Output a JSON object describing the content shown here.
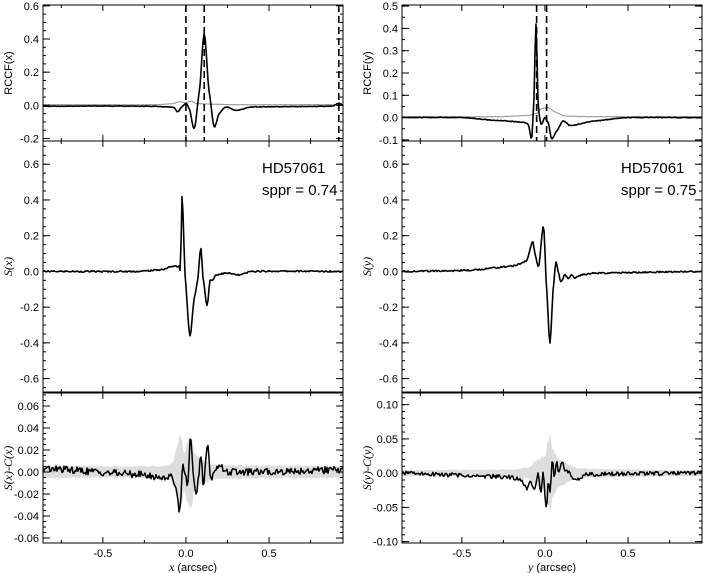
{
  "chart_data": [
    {
      "id": "rccf-x",
      "type": "line",
      "ylabel": "RCCF(x)",
      "ylabel_parts": [
        "RCCF(",
        "x",
        ")"
      ],
      "xlim": [
        -0.86,
        0.945
      ],
      "ylim": [
        -0.215,
        0.605
      ],
      "yticks": [
        {
          "v": 0.6,
          "label": "0.6"
        },
        {
          "v": 0.4,
          "label": "0.4"
        },
        {
          "v": 0.2,
          "label": "0.2"
        },
        {
          "v": 0.0,
          "label": "0.0"
        },
        {
          "v": -0.2,
          "label": "-0.2"
        }
      ],
      "yminor_step": 0.05,
      "vlines": [
        0.0,
        0.11,
        0.92
      ],
      "series": [
        {
          "name": "RCCF",
          "color": "#000000",
          "width": 1.6,
          "noise": 0.0015,
          "points": [
            [
              -0.86,
              -0.005
            ],
            [
              -0.5,
              -0.004
            ],
            [
              -0.2,
              -0.006
            ],
            [
              -0.1,
              -0.01
            ],
            [
              -0.07,
              -0.015
            ],
            [
              -0.05,
              -0.04
            ],
            [
              -0.025,
              -0.01
            ],
            [
              0.0,
              0.012
            ],
            [
              0.02,
              -0.02
            ],
            [
              0.05,
              -0.14
            ],
            [
              0.08,
              0.08
            ],
            [
              0.11,
              0.43
            ],
            [
              0.14,
              0.08
            ],
            [
              0.17,
              -0.13
            ],
            [
              0.2,
              -0.05
            ],
            [
              0.24,
              -0.01
            ],
            [
              0.3,
              -0.03
            ],
            [
              0.4,
              -0.01
            ],
            [
              0.88,
              -0.005
            ],
            [
              0.92,
              0.012
            ],
            [
              0.945,
              0.0
            ]
          ]
        },
        {
          "name": "reference",
          "color": "#999999",
          "width": 1.1,
          "noise": 0.001,
          "points": [
            [
              -0.86,
              0.004
            ],
            [
              -0.2,
              0.004
            ],
            [
              -0.08,
              0.01
            ],
            [
              -0.04,
              0.022
            ],
            [
              0.0,
              0.015
            ],
            [
              0.03,
              0.025
            ],
            [
              0.06,
              0.012
            ],
            [
              0.12,
              0.008
            ],
            [
              0.3,
              0.004
            ],
            [
              0.945,
              0.004
            ]
          ]
        }
      ]
    },
    {
      "id": "rccf-y",
      "type": "line",
      "ylabel": "RCCF(y)",
      "ylabel_parts": [
        "RCCF(",
        "y",
        ")"
      ],
      "xlim": [
        -0.86,
        0.945
      ],
      "ylim": [
        -0.105,
        0.505
      ],
      "yticks": [
        {
          "v": 0.5,
          "label": "0.5"
        },
        {
          "v": 0.4,
          "label": "0.4"
        },
        {
          "v": 0.3,
          "label": "0.3"
        },
        {
          "v": 0.2,
          "label": "0.2"
        },
        {
          "v": 0.1,
          "label": "0.1"
        },
        {
          "v": 0.0,
          "label": "0.0"
        },
        {
          "v": -0.1,
          "label": "-0.1"
        }
      ],
      "yminor_step": 0.05,
      "vlines": [
        -0.05,
        0.01
      ],
      "series": [
        {
          "name": "RCCF",
          "color": "#000000",
          "width": 1.6,
          "noise": 0.0015,
          "points": [
            [
              -0.86,
              0.0
            ],
            [
              -0.5,
              0.0
            ],
            [
              -0.3,
              -0.012
            ],
            [
              -0.15,
              -0.02
            ],
            [
              -0.1,
              -0.03
            ],
            [
              -0.08,
              -0.095
            ],
            [
              -0.068,
              0.05
            ],
            [
              -0.054,
              0.42
            ],
            [
              -0.04,
              0.05
            ],
            [
              -0.022,
              -0.03
            ],
            [
              0.0,
              0.0
            ],
            [
              0.02,
              -0.025
            ],
            [
              0.04,
              -0.095
            ],
            [
              0.07,
              -0.06
            ],
            [
              0.11,
              -0.015
            ],
            [
              0.15,
              -0.035
            ],
            [
              0.3,
              -0.015
            ],
            [
              0.5,
              0.0
            ],
            [
              0.945,
              0.0
            ]
          ]
        },
        {
          "name": "reference",
          "color": "#999999",
          "width": 1.1,
          "noise": 0.001,
          "points": [
            [
              -0.86,
              0.004
            ],
            [
              -0.3,
              0.004
            ],
            [
              -0.1,
              0.01
            ],
            [
              -0.05,
              0.02
            ],
            [
              -0.02,
              0.04
            ],
            [
              0.02,
              0.045
            ],
            [
              0.06,
              0.025
            ],
            [
              0.12,
              0.008
            ],
            [
              0.3,
              0.004
            ],
            [
              0.945,
              0.004
            ]
          ]
        }
      ]
    },
    {
      "id": "s-x",
      "type": "line",
      "ylabel": "S(x)",
      "ylabel_parts": [
        "S(",
        "x",
        ")"
      ],
      "ylabel_italic": true,
      "xlim": [
        -0.86,
        0.945
      ],
      "ylim": [
        -0.675,
        0.73
      ],
      "yticks": [
        {
          "v": 0.6,
          "label": "0.6"
        },
        {
          "v": 0.4,
          "label": "0.4"
        },
        {
          "v": 0.2,
          "label": "0.2"
        },
        {
          "v": 0.0,
          "label": "0.0"
        },
        {
          "v": -0.2,
          "label": "-0.2"
        },
        {
          "v": -0.4,
          "label": "-0.4"
        },
        {
          "v": -0.6,
          "label": "-0.6"
        }
      ],
      "yminor_step": 0.05,
      "annotations": [
        "HD57061",
        "sppr = 0.74"
      ],
      "series": [
        {
          "name": "S",
          "color": "#000000",
          "width": 1.6,
          "noise": 0.004,
          "points": [
            [
              -0.86,
              0.0
            ],
            [
              -0.3,
              0.0
            ],
            [
              -0.15,
              0.01
            ],
            [
              -0.07,
              0.03
            ],
            [
              -0.045,
              0.025
            ],
            [
              -0.038,
              0.03
            ],
            [
              -0.033,
              0.0
            ],
            [
              -0.024,
              0.42
            ],
            [
              -0.003,
              -0.05
            ],
            [
              0.024,
              -0.36
            ],
            [
              0.05,
              -0.15
            ],
            [
              0.07,
              -0.05
            ],
            [
              0.089,
              0.13
            ],
            [
              0.105,
              -0.05
            ],
            [
              0.127,
              -0.19
            ],
            [
              0.145,
              -0.05
            ],
            [
              0.16,
              -0.05
            ],
            [
              0.18,
              -0.02
            ],
            [
              0.25,
              -0.01
            ],
            [
              0.32,
              -0.02
            ],
            [
              0.4,
              0.0
            ],
            [
              0.945,
              0.0
            ]
          ]
        }
      ]
    },
    {
      "id": "s-y",
      "type": "line",
      "ylabel": "S(y)",
      "ylabel_parts": [
        "S(",
        "y",
        ")"
      ],
      "ylabel_italic": true,
      "xlim": [
        -0.86,
        0.945
      ],
      "ylim": [
        -0.675,
        0.73
      ],
      "yticks": [
        {
          "v": 0.6,
          "label": "0.6"
        },
        {
          "v": 0.4,
          "label": "0.4"
        },
        {
          "v": 0.2,
          "label": "0.2"
        },
        {
          "v": 0.0,
          "label": "0.0"
        },
        {
          "v": -0.2,
          "label": "-0.2"
        },
        {
          "v": -0.4,
          "label": "-0.4"
        },
        {
          "v": -0.6,
          "label": "-0.6"
        }
      ],
      "yminor_step": 0.05,
      "annotations": [
        "HD57061",
        "sppr = 0.75"
      ],
      "series": [
        {
          "name": "S",
          "color": "#000000",
          "width": 1.6,
          "noise": 0.004,
          "points": [
            [
              -0.86,
              0.0
            ],
            [
              -0.5,
              0.005
            ],
            [
              -0.2,
              0.03
            ],
            [
              -0.11,
              0.06
            ],
            [
              -0.09,
              0.12
            ],
            [
              -0.074,
              0.17
            ],
            [
              -0.06,
              0.1
            ],
            [
              -0.038,
              0.03
            ],
            [
              -0.008,
              0.25
            ],
            [
              0.01,
              -0.1
            ],
            [
              0.03,
              -0.4
            ],
            [
              0.05,
              -0.1
            ],
            [
              0.066,
              0.05
            ],
            [
              0.08,
              0.0
            ],
            [
              0.096,
              -0.06
            ],
            [
              0.12,
              -0.02
            ],
            [
              0.14,
              -0.04
            ],
            [
              0.16,
              -0.02
            ],
            [
              0.18,
              -0.035
            ],
            [
              0.22,
              -0.02
            ],
            [
              0.3,
              -0.01
            ],
            [
              0.945,
              0.0
            ]
          ]
        }
      ]
    },
    {
      "id": "s-minus-c-x",
      "type": "line",
      "ylabel": "S(x)-C(x)",
      "ylabel_parts": [
        "S(x)-C(x)"
      ],
      "ylabel_italic": true,
      "xlim": [
        -0.86,
        0.945
      ],
      "ylim": [
        -0.0645,
        0.0718
      ],
      "yticks": [
        {
          "v": 0.06,
          "label": "0.06"
        },
        {
          "v": 0.04,
          "label": "0.04"
        },
        {
          "v": 0.02,
          "label": "0.02"
        },
        {
          "v": 0.0,
          "label": "0.00"
        },
        {
          "v": -0.02,
          "label": "-0.02"
        },
        {
          "v": -0.04,
          "label": "-0.04"
        },
        {
          "v": -0.06,
          "label": "-0.06"
        }
      ],
      "yminor_step": 0.005,
      "xticks": [
        {
          "v": -0.5,
          "label": "-0.5"
        },
        {
          "v": 0.0,
          "label": "0.0"
        },
        {
          "v": 0.5,
          "label": "0.5"
        }
      ],
      "xlabel": "x (arcsec)",
      "xlabel_parts": [
        "x",
        " (arcsec)"
      ],
      "band": {
        "color": "#dddddd",
        "envelope": [
          [
            -0.86,
            0.006
          ],
          [
            -0.15,
            0.006
          ],
          [
            -0.08,
            0.01
          ],
          [
            -0.05,
            0.03
          ],
          [
            -0.035,
            0.039
          ],
          [
            -0.01,
            0.02
          ],
          [
            0.01,
            0.03
          ],
          [
            0.03,
            0.039
          ],
          [
            0.05,
            0.02
          ],
          [
            0.1,
            0.012
          ],
          [
            0.2,
            0.007
          ],
          [
            0.945,
            0.006
          ]
        ]
      },
      "series": [
        {
          "name": "residual",
          "color": "#000000",
          "width": 1.5,
          "noise": 0.0032,
          "points": [
            [
              -0.86,
              0.003
            ],
            [
              -0.3,
              -0.002
            ],
            [
              -0.15,
              -0.005
            ],
            [
              -0.08,
              -0.005
            ],
            [
              -0.06,
              -0.015
            ],
            [
              -0.036,
              -0.035
            ],
            [
              -0.02,
              0.005
            ],
            [
              -0.005,
              0.0
            ],
            [
              0.01,
              -0.01
            ],
            [
              0.028,
              0.031
            ],
            [
              0.045,
              0.0
            ],
            [
              0.06,
              -0.023
            ],
            [
              0.09,
              0.012
            ],
            [
              0.105,
              -0.01
            ],
            [
              0.13,
              0.024
            ],
            [
              0.15,
              -0.005
            ],
            [
              0.19,
              0.006
            ],
            [
              0.25,
              0.0
            ],
            [
              0.945,
              0.002
            ]
          ]
        }
      ]
    },
    {
      "id": "s-minus-c-y",
      "type": "line",
      "ylabel": "S(y)-C(y)",
      "ylabel_parts": [
        "S(y)-C(y)"
      ],
      "ylabel_italic": true,
      "xlim": [
        -0.86,
        0.945
      ],
      "ylim": [
        -0.102,
        0.117
      ],
      "yticks": [
        {
          "v": 0.1,
          "label": "0.10"
        },
        {
          "v": 0.05,
          "label": "0.05"
        },
        {
          "v": 0.0,
          "label": "0.00"
        },
        {
          "v": -0.05,
          "label": "-0.05"
        },
        {
          "v": -0.1,
          "label": "-0.10"
        }
      ],
      "yminor_step": 0.01,
      "xticks": [
        {
          "v": -0.5,
          "label": "-0.5"
        },
        {
          "v": 0.0,
          "label": "0.0"
        },
        {
          "v": 0.5,
          "label": "0.5"
        }
      ],
      "xlabel": "y (arcsec)",
      "xlabel_parts": [
        "y",
        " (arcsec)"
      ],
      "band": {
        "color": "#dddddd",
        "envelope": [
          [
            -0.86,
            0.005
          ],
          [
            -0.2,
            0.006
          ],
          [
            -0.1,
            0.01
          ],
          [
            -0.05,
            0.02
          ],
          [
            0.0,
            0.03
          ],
          [
            0.03,
            0.06
          ],
          [
            0.05,
            0.035
          ],
          [
            0.1,
            0.02
          ],
          [
            0.2,
            0.008
          ],
          [
            0.945,
            0.005
          ]
        ]
      },
      "series": [
        {
          "name": "residual",
          "color": "#000000",
          "width": 1.5,
          "noise": 0.003,
          "points": [
            [
              -0.86,
              0.0
            ],
            [
              -0.3,
              -0.005
            ],
            [
              -0.15,
              -0.008
            ],
            [
              -0.11,
              -0.022
            ],
            [
              -0.09,
              -0.01
            ],
            [
              -0.06,
              -0.022
            ],
            [
              -0.04,
              0.0
            ],
            [
              -0.025,
              -0.03
            ],
            [
              -0.01,
              0.0
            ],
            [
              0.0,
              -0.035
            ],
            [
              0.01,
              -0.048
            ],
            [
              0.02,
              -0.01
            ],
            [
              0.03,
              -0.03
            ],
            [
              0.045,
              0.022
            ],
            [
              0.055,
              -0.005
            ],
            [
              0.07,
              0.015
            ],
            [
              0.085,
              0.0
            ],
            [
              0.1,
              0.017
            ],
            [
              0.12,
              0.005
            ],
            [
              0.15,
              0.0
            ],
            [
              0.18,
              -0.01
            ],
            [
              0.25,
              -0.002
            ],
            [
              0.945,
              0.0
            ]
          ]
        }
      ]
    }
  ]
}
